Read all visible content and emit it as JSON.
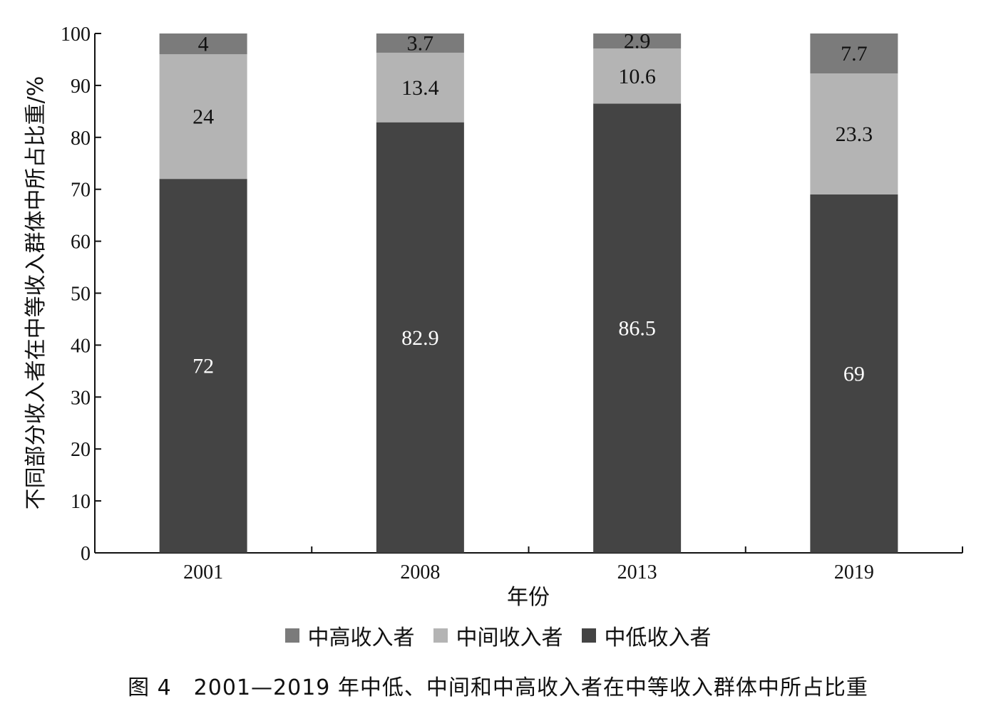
{
  "chart_data": {
    "type": "bar",
    "stacked": true,
    "categories": [
      "2001",
      "2008",
      "2013",
      "2019"
    ],
    "series": [
      {
        "name": "中低收入者",
        "color": "#444444",
        "text_color": "#ffffff",
        "values": [
          72,
          82.9,
          86.5,
          69
        ]
      },
      {
        "name": "中间收入者",
        "color": "#b4b4b4",
        "text_color": "#111111",
        "values": [
          24,
          13.4,
          10.6,
          23.3
        ]
      },
      {
        "name": "中高收入者",
        "color": "#7b7b7b",
        "text_color": "#111111",
        "values": [
          4,
          3.7,
          2.9,
          7.7
        ]
      }
    ],
    "xlabel": "年份",
    "ylabel": "不同部分收入者在中等收入群体中所占比重/%",
    "ylim": [
      0,
      100
    ],
    "yticks": [
      0,
      10,
      20,
      30,
      40,
      50,
      60,
      70,
      80,
      90,
      100
    ],
    "legend_order": [
      "中高收入者",
      "中间收入者",
      "中低收入者"
    ],
    "legend_position": "bottom",
    "grid": false
  },
  "caption": "图 4　2001—2019 年中低、中间和中高收入者在中等收入群体中所占比重"
}
